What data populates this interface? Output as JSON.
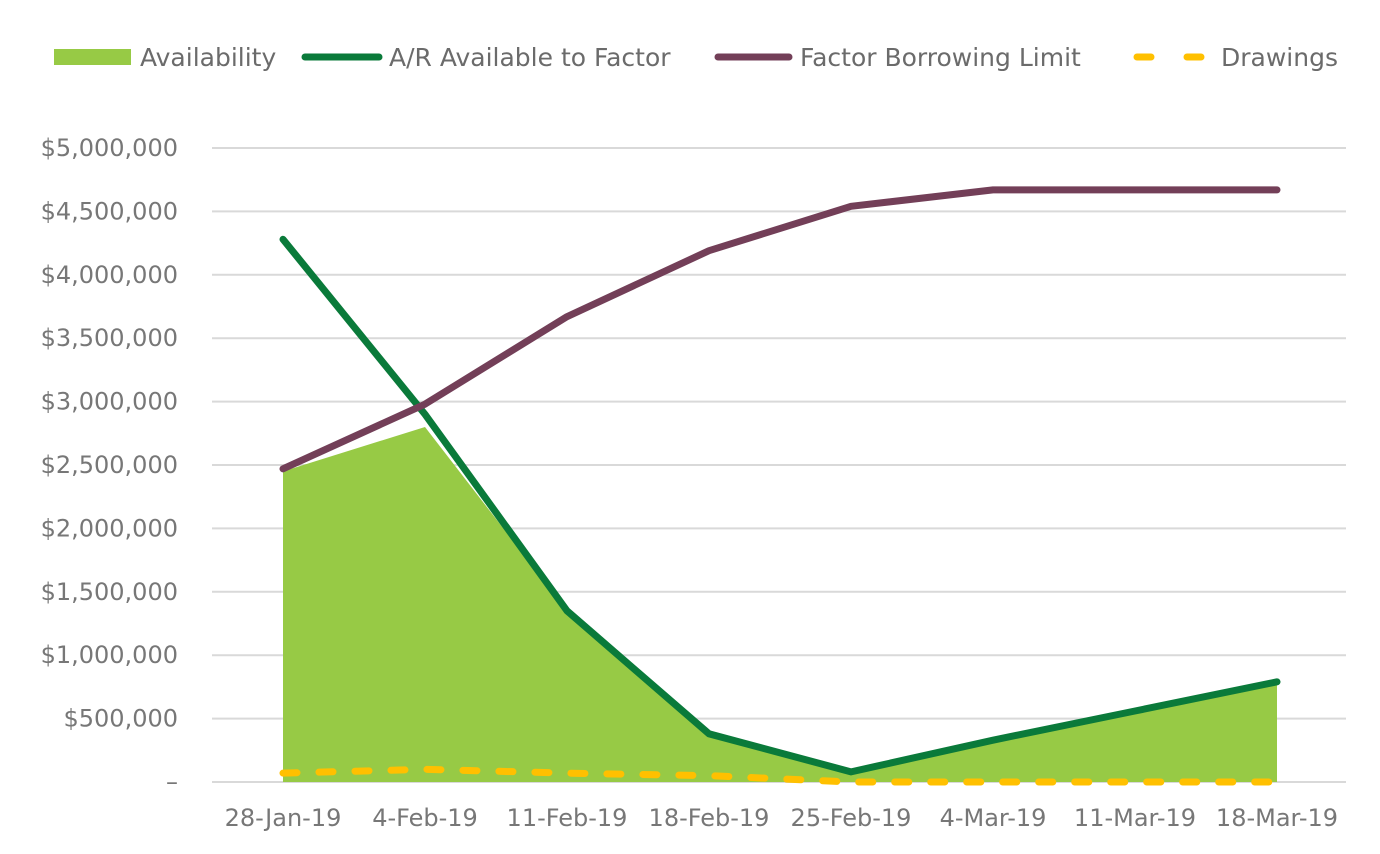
{
  "chart_data": {
    "type": "area",
    "title": "",
    "xlabel": "",
    "ylabel": "",
    "categories": [
      "28-Jan-19",
      "4-Feb-19",
      "11-Feb-19",
      "18-Feb-19",
      "25-Feb-19",
      "4-Mar-19",
      "11-Mar-19",
      "18-Mar-19"
    ],
    "ylim": [
      0,
      5000000
    ],
    "y_ticks": [
      {
        "value": 0,
        "label": "–"
      },
      {
        "value": 500000,
        "label": "$500,000"
      },
      {
        "value": 1000000,
        "label": "$1,000,000"
      },
      {
        "value": 1500000,
        "label": "$1,500,000"
      },
      {
        "value": 2000000,
        "label": "$2,000,000"
      },
      {
        "value": 2500000,
        "label": "$2,500,000"
      },
      {
        "value": 3000000,
        "label": "$3,000,000"
      },
      {
        "value": 3500000,
        "label": "$3,500,000"
      },
      {
        "value": 4000000,
        "label": "$4,000,000"
      },
      {
        "value": 4500000,
        "label": "$4,500,000"
      },
      {
        "value": 5000000,
        "label": "$5,000,000"
      }
    ],
    "grid": true,
    "legend_position": "top",
    "series": [
      {
        "name": "Availability",
        "kind": "area",
        "color": "#97ca45",
        "values": [
          2450000,
          2800000,
          1350000,
          380000,
          80000,
          330000,
          560000,
          790000
        ]
      },
      {
        "name": "A/R Available to Factor",
        "kind": "line",
        "color": "#0a7a3a",
        "values": [
          4280000,
          2900000,
          1350000,
          380000,
          80000,
          330000,
          560000,
          790000
        ]
      },
      {
        "name": "Factor Borrowing Limit",
        "kind": "line",
        "color": "#733f58",
        "values": [
          2470000,
          2980000,
          3670000,
          4190000,
          4540000,
          4670000,
          4670000,
          4670000
        ]
      },
      {
        "name": "Drawings",
        "kind": "dashed",
        "color": "#ffc000",
        "values": [
          70000,
          100000,
          70000,
          50000,
          0,
          0,
          0,
          0
        ]
      }
    ]
  }
}
